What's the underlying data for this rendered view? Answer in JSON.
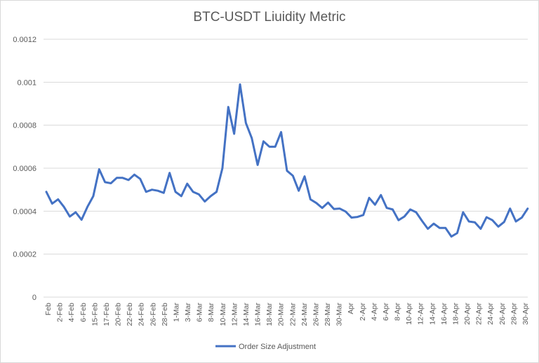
{
  "chart_data": {
    "type": "line",
    "title": "BTC-USDT Liuidity Metric",
    "xlabel": "",
    "ylabel": "",
    "ylim": [
      0,
      0.0012
    ],
    "yticks": [
      "0",
      "0.0002",
      "0.0004",
      "0.0006",
      "0.0008",
      "0.001",
      "0.0012"
    ],
    "grid": true,
    "legend_position": "bottom",
    "series": [
      {
        "name": "Order Size Adjustment",
        "color": "#4472c4",
        "values": [
          0.00049,
          0.000435,
          0.000455,
          0.00042,
          0.000375,
          0.000395,
          0.00036,
          0.00042,
          0.00047,
          0.000595,
          0.000535,
          0.00053,
          0.000555,
          0.000555,
          0.000545,
          0.00057,
          0.00055,
          0.00049,
          0.0005,
          0.000495,
          0.000485,
          0.000578,
          0.00049,
          0.00047,
          0.000528,
          0.00049,
          0.000478,
          0.000445,
          0.00047,
          0.00049,
          0.0006,
          0.000885,
          0.00076,
          0.00099,
          0.00081,
          0.00074,
          0.000615,
          0.000725,
          0.0007,
          0.0007,
          0.000768,
          0.000588,
          0.000565,
          0.000495,
          0.000562,
          0.000455,
          0.000438,
          0.000415,
          0.00044,
          0.00041,
          0.000412,
          0.000398,
          0.00037,
          0.000373,
          0.000382,
          0.000462,
          0.00043,
          0.000475,
          0.000415,
          0.000408,
          0.000358,
          0.000375,
          0.000408,
          0.000395,
          0.000355,
          0.000318,
          0.000342,
          0.000322,
          0.000322,
          0.000282,
          0.000298,
          0.000395,
          0.000352,
          0.000348,
          0.000318,
          0.000372,
          0.000358,
          0.000328,
          0.00035,
          0.000412,
          0.000352,
          0.00037,
          0.000412
        ]
      }
    ],
    "x_tick_labels": [
      "Feb",
      "2-Feb",
      "4-Feb",
      "6-Feb",
      "15-Feb",
      "17-Feb",
      "20-Feb",
      "22-Feb",
      "24-Feb",
      "26-Feb",
      "28-Feb",
      "1-Mar",
      "3-Mar",
      "6-Mar",
      "8-Mar",
      "10-Mar",
      "12-Mar",
      "14-Mar",
      "16-Mar",
      "18-Mar",
      "20-Mar",
      "22-Mar",
      "24-Mar",
      "26-Mar",
      "28-Mar",
      "30-Mar",
      "Apr",
      "2-Apr",
      "4-Apr",
      "6-Apr",
      "8-Apr",
      "10-Apr",
      "12-Apr",
      "14-Apr",
      "16-Apr",
      "18-Apr",
      "20-Apr",
      "22-Apr",
      "24-Apr",
      "26-Apr",
      "28-Apr",
      "30-Apr"
    ]
  }
}
